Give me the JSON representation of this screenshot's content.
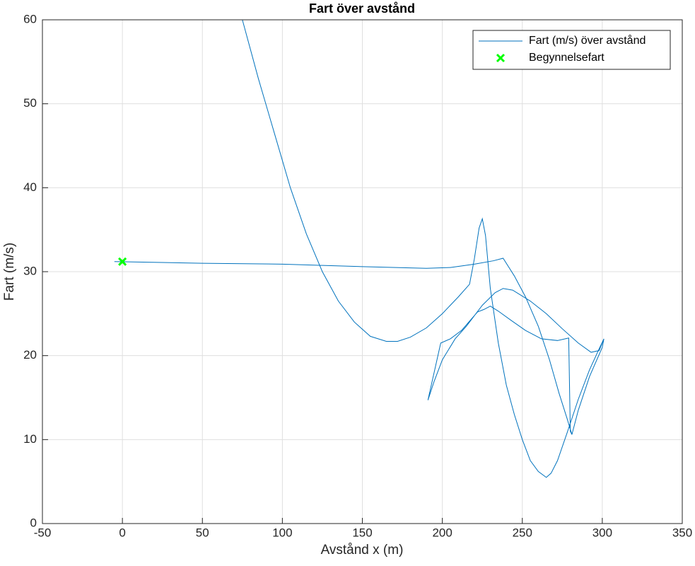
{
  "chart_data": {
    "type": "line",
    "title": "Fart över avstånd",
    "xlabel": "Avstånd x (m)",
    "ylabel": "Fart (m/s)",
    "xlim": [
      -50,
      350
    ],
    "xticks": [
      -50,
      0,
      50,
      100,
      150,
      200,
      250,
      300,
      350
    ],
    "ylim": [
      0,
      60
    ],
    "yticks": [
      0,
      10,
      20,
      30,
      40,
      50,
      60
    ],
    "grid": true,
    "legend": "northeast",
    "series": [
      {
        "name": "Fart (m/s) över avstånd",
        "color": "#0072bd",
        "x": [
          -5,
          25,
          50,
          100,
          150,
          190,
          205,
          220,
          232,
          238,
          245,
          252,
          260,
          267,
          273,
          278,
          281,
          280,
          279,
          272,
          262,
          252,
          243,
          235,
          230,
          226,
          222,
          212,
          205,
          199,
          191,
          195,
          200,
          208,
          215,
          225,
          233,
          238,
          244,
          255,
          265,
          275,
          285,
          293,
          298,
          301,
          300,
          292,
          285,
          281,
          null,
          75,
          85,
          95,
          105,
          115,
          125,
          135,
          145,
          155,
          165,
          172,
          180,
          190,
          200,
          210,
          217,
          220,
          223,
          225,
          227,
          230,
          235,
          240,
          245,
          250,
          255,
          260,
          265,
          268,
          272,
          278,
          285,
          292,
          298,
          301
        ],
        "values": [
          31.2,
          31.1,
          31.0,
          30.9,
          30.6,
          30.4,
          30.5,
          30.9,
          31.3,
          31.6,
          29.5,
          27,
          23.5,
          19.5,
          15.5,
          12.5,
          10.6,
          11,
          22.1,
          21.8,
          22,
          23,
          24.2,
          25.3,
          25.9,
          25.5,
          25.2,
          23,
          22,
          21.5,
          14.7,
          17,
          19.5,
          22,
          23.5,
          26,
          27.5,
          28,
          27.8,
          26.5,
          25,
          23.2,
          21.5,
          20.4,
          20.6,
          22,
          21,
          17.5,
          13.5,
          10.6,
          null,
          60,
          53,
          46.5,
          40,
          34.5,
          30,
          26.5,
          24,
          22.3,
          21.7,
          21.7,
          22.2,
          23.3,
          25,
          27,
          28.5,
          31.5,
          35.2,
          36.3,
          34.3,
          28,
          21.5,
          16.5,
          13,
          10,
          7.5,
          6.2,
          5.5,
          6,
          7.5,
          10.8,
          14.8,
          18.3,
          20.8,
          22
        ]
      },
      {
        "name": "Begynnelsefart",
        "color": "#00ff00",
        "marker": "x",
        "x": [
          0
        ],
        "values": [
          31.2
        ]
      }
    ]
  }
}
